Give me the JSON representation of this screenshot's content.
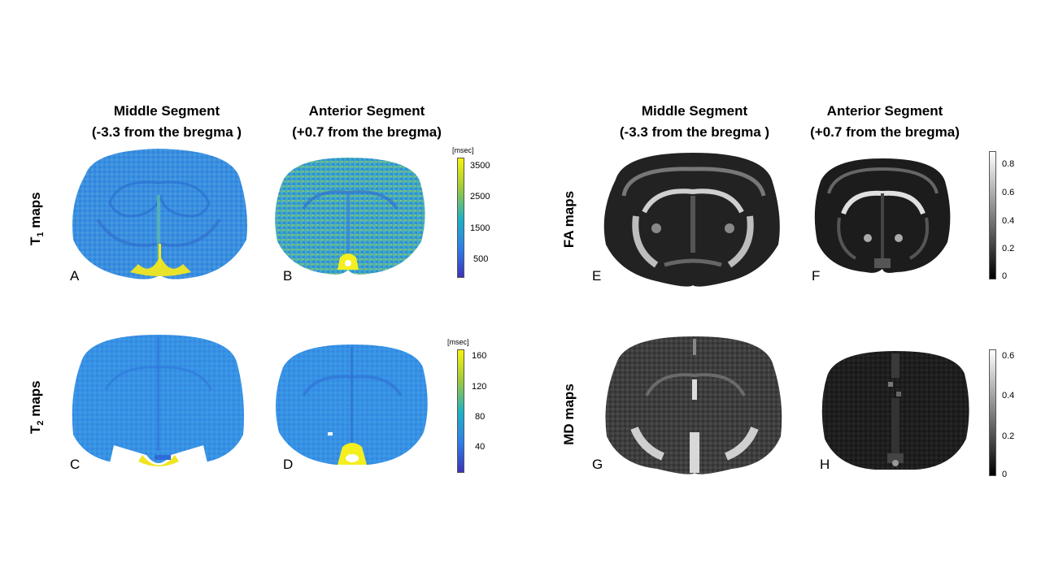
{
  "column_titles": {
    "left_middle": [
      "Middle Segment",
      "(-3.3 from the bregma )"
    ],
    "left_anterior": [
      "Anterior Segment",
      "(+0.7 from the bregma)"
    ],
    "right_middle": [
      "Middle Segment",
      "(-3.3 from the bregma )"
    ],
    "right_anterior": [
      "Anterior Segment",
      "(+0.7 from the bregma)"
    ]
  },
  "row_labels": {
    "t1": {
      "main": "T",
      "sub": "1",
      "rest": " maps"
    },
    "t2": {
      "main": "T",
      "sub": "2",
      "rest": " maps"
    },
    "fa": "FA maps",
    "md": "MD maps"
  },
  "panel_letters": {
    "A": "A",
    "B": "B",
    "C": "C",
    "D": "D",
    "E": "E",
    "F": "F",
    "G": "G",
    "H": "H"
  },
  "colorbars": {
    "t1": {
      "unit": "[msec]",
      "ticks": [
        "3500",
        "2500",
        "1500",
        "500"
      ],
      "colormap": "parula"
    },
    "t2": {
      "unit": "[msec]",
      "ticks": [
        "160",
        "120",
        "80",
        "40"
      ],
      "colormap": "parula"
    },
    "fa": {
      "ticks": [
        "0.8",
        "0.6",
        "0.4",
        "0.2",
        "0"
      ],
      "colormap": "gray"
    },
    "md": {
      "ticks": [
        "0.6",
        "0.4",
        "0.2",
        "0"
      ],
      "colormap": "gray"
    }
  },
  "colors": {
    "parula_low": "#3d2fb6",
    "parula_mid_blue": "#2f8fe6",
    "parula_cyan": "#22b8b4",
    "parula_green": "#7cc65a",
    "parula_yellow": "#f9f40d"
  }
}
